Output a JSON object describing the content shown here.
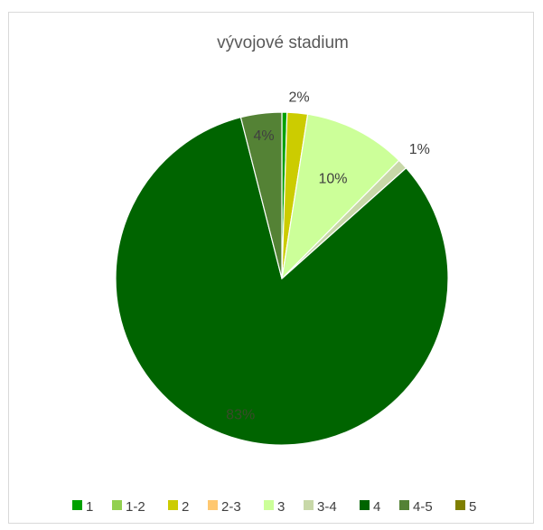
{
  "chart_data": {
    "type": "pie",
    "title": "vývojové stadium",
    "categories": [
      "1",
      "1-2",
      "2",
      "2-3",
      "3",
      "3-4",
      "4",
      "4-5",
      "5"
    ],
    "values": [
      0.5,
      0,
      2,
      0,
      10,
      1,
      83,
      4,
      0
    ],
    "data_labels": [
      "",
      "",
      "2%",
      "",
      "10%",
      "1%",
      "83%",
      "4%",
      ""
    ],
    "colors": [
      "#00a000",
      "#92d050",
      "#cccc00",
      "#ffc870",
      "#ccff99",
      "#c8d8a8",
      "#006400",
      "#548235",
      "#7f7f00"
    ],
    "legend": {
      "position": "bottom"
    }
  }
}
